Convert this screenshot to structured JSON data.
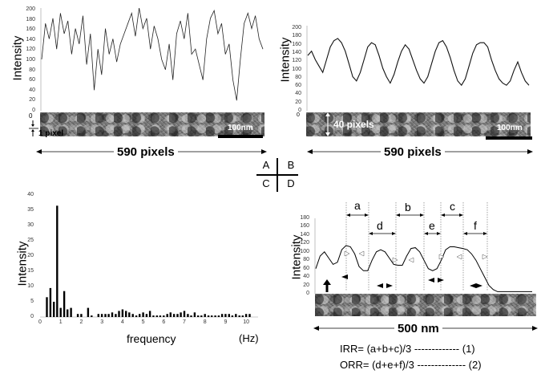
{
  "panel_a": {
    "ylabel": "Intensity",
    "yticks": [
      "200",
      "180",
      "160",
      "140",
      "120",
      "100",
      "80",
      "60",
      "40",
      "20",
      "0"
    ],
    "scale_label": "100nm",
    "pixel_label": "1 pixel",
    "width_label": "590 pixels"
  },
  "panel_b": {
    "ylabel": "Intensity",
    "yticks": [
      "200",
      "180",
      "160",
      "140",
      "120",
      "100",
      "80",
      "60",
      "40",
      "20",
      "0"
    ],
    "scale_label": "100nm",
    "height_label": "40 pixels",
    "width_label": "590 pixels"
  },
  "legend_cross": {
    "a": "A",
    "b": "B",
    "c": "C",
    "d": "D"
  },
  "panel_c": {
    "ylabel": "Intensity",
    "xlabel": "frequency",
    "unit": "(Hz)",
    "yticks": [
      "40",
      "35",
      "30",
      "25",
      "20",
      "15",
      "10",
      "5",
      "0"
    ],
    "xticks": [
      "0",
      "1",
      "2",
      "3",
      "4",
      "5",
      "6",
      "7",
      "8",
      "9",
      "10"
    ]
  },
  "panel_d": {
    "ylabel": "Intensity",
    "yticks": [
      "180",
      "160",
      "140",
      "120",
      "100",
      "80",
      "60",
      "40",
      "20",
      "0"
    ],
    "gap_labels": [
      "a",
      "b",
      "c",
      "d",
      "e",
      "f"
    ],
    "width_label": "500 nm",
    "irr_formula": "IRR= (a+b+c)/3  ------------- (1)",
    "orr_formula": "ORR= (d+e+f)/3  -------------- (2)"
  },
  "chart_data": [
    {
      "type": "line",
      "panel": "A",
      "ylabel": "Intensity",
      "ylim": [
        0,
        200
      ],
      "x": [
        0,
        10,
        20,
        30,
        40,
        50,
        60,
        70,
        80,
        90,
        100,
        110,
        120,
        130,
        140,
        150,
        160,
        170,
        180,
        190,
        200,
        210,
        220,
        230,
        240,
        250,
        260,
        270,
        280,
        290,
        300,
        310,
        320,
        330,
        340,
        350,
        360,
        370,
        380,
        390,
        400,
        410,
        420,
        430,
        440,
        450,
        460,
        470,
        480,
        490,
        500,
        510,
        520,
        530,
        540,
        550,
        560,
        570,
        580,
        590
      ],
      "y": [
        100,
        170,
        140,
        180,
        120,
        190,
        150,
        175,
        110,
        160,
        130,
        185,
        90,
        150,
        40,
        120,
        70,
        160,
        110,
        140,
        95,
        130,
        150,
        170,
        190,
        145,
        200,
        160,
        180,
        120,
        165,
        140,
        100,
        80,
        130,
        60,
        150,
        175,
        140,
        190,
        110,
        120,
        90,
        60,
        140,
        180,
        195,
        150,
        170,
        110,
        130,
        60,
        20,
        100,
        170,
        190,
        160,
        185,
        140,
        120
      ]
    },
    {
      "type": "line",
      "panel": "B",
      "ylabel": "Intensity",
      "ylim": [
        0,
        200
      ],
      "x": [
        0,
        10,
        20,
        30,
        40,
        50,
        60,
        70,
        80,
        90,
        100,
        110,
        120,
        130,
        140,
        150,
        160,
        170,
        180,
        190,
        200,
        210,
        220,
        230,
        240,
        250,
        260,
        270,
        280,
        290,
        300,
        310,
        320,
        330,
        340,
        350,
        360,
        370,
        380,
        390,
        400,
        410,
        420,
        430,
        440,
        450,
        460,
        470,
        480,
        490,
        500,
        510,
        520,
        530,
        540,
        550,
        560,
        570,
        580,
        590
      ],
      "y": [
        130,
        140,
        120,
        105,
        90,
        120,
        150,
        165,
        170,
        160,
        140,
        110,
        80,
        70,
        90,
        120,
        150,
        160,
        155,
        130,
        100,
        80,
        65,
        85,
        115,
        140,
        155,
        145,
        120,
        95,
        75,
        65,
        80,
        110,
        140,
        160,
        165,
        150,
        125,
        95,
        70,
        60,
        75,
        105,
        135,
        155,
        160,
        160,
        150,
        120,
        95,
        75,
        65,
        60,
        70,
        95,
        115,
        90,
        70,
        60
      ]
    },
    {
      "type": "bar",
      "panel": "C",
      "xlabel": "frequency",
      "ylabel": "Intensity",
      "xlim": [
        0,
        10.5
      ],
      "ylim": [
        0,
        40
      ],
      "x": [
        0.33,
        0.5,
        0.67,
        0.83,
        1.0,
        1.17,
        1.33,
        1.5,
        1.83,
        2.0,
        2.33,
        2.5,
        2.83,
        3.0,
        3.17,
        3.33,
        3.5,
        3.67,
        3.83,
        4.0,
        4.17,
        4.33,
        4.5,
        4.67,
        4.83,
        5.0,
        5.17,
        5.33,
        5.5,
        5.67,
        5.83,
        6.0,
        6.17,
        6.33,
        6.5,
        6.67,
        6.83,
        7.0,
        7.17,
        7.33,
        7.5,
        7.67,
        7.83,
        8.0,
        8.17,
        8.33,
        8.5,
        8.67,
        8.83,
        9.0,
        9.17,
        9.33,
        9.5,
        9.67,
        9.83,
        10.0,
        10.17
      ],
      "values": [
        6.5,
        9.5,
        5,
        36.5,
        3,
        8.5,
        2.5,
        3,
        1,
        1,
        3,
        0.5,
        1,
        1,
        1,
        1,
        1.5,
        1,
        2,
        2.5,
        2,
        1.5,
        1,
        0.5,
        1,
        1.5,
        1,
        2,
        0.5,
        0.5,
        0.5,
        0.5,
        1,
        1.5,
        1,
        1,
        1.5,
        2,
        1,
        0.5,
        1.5,
        0.5,
        0.5,
        1,
        0.5,
        0.5,
        0.5,
        0.5,
        1,
        1,
        1,
        0.5,
        1,
        0.5,
        0.5,
        1,
        1
      ]
    },
    {
      "type": "line",
      "panel": "D",
      "ylabel": "Intensity",
      "ylim": [
        0,
        180
      ],
      "x": [
        0,
        10,
        20,
        30,
        40,
        50,
        60,
        70,
        80,
        90,
        100,
        110,
        120,
        130,
        140,
        150,
        160,
        170,
        180,
        190,
        200,
        210,
        220,
        230,
        240,
        250,
        260,
        270,
        280,
        290,
        300,
        310,
        320,
        330,
        340,
        350,
        360,
        370,
        380,
        390,
        400,
        410,
        420,
        430,
        440,
        450,
        460,
        470,
        480,
        490,
        500
      ],
      "y": [
        60,
        90,
        100,
        85,
        70,
        75,
        105,
        115,
        112,
        95,
        65,
        55,
        55,
        80,
        100,
        105,
        100,
        85,
        70,
        68,
        68,
        90,
        108,
        110,
        100,
        80,
        60,
        55,
        60,
        80,
        105,
        112,
        112,
        110,
        108,
        105,
        95,
        80,
        60,
        40,
        20,
        10,
        5,
        5,
        5,
        5,
        5,
        5,
        5,
        5,
        5
      ]
    }
  ]
}
